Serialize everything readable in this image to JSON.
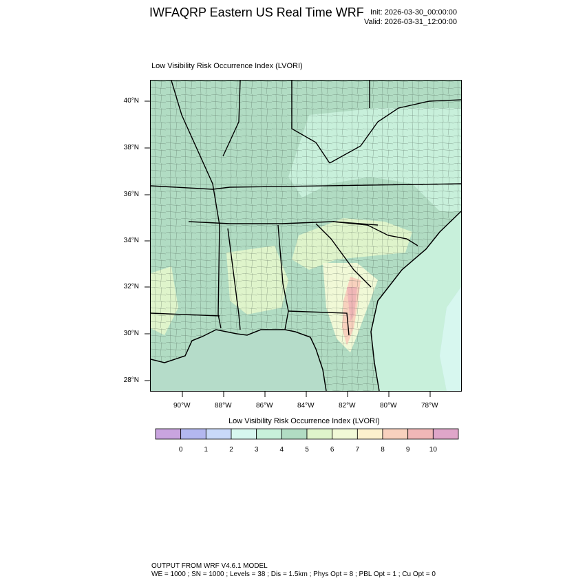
{
  "header": {
    "title": "IWFAQRP Eastern US Real Time WRF",
    "init": "Init: 2026-03-30_00:00:00",
    "valid": "Valid: 2026-03-31_12:00:00"
  },
  "map": {
    "field_title": "Low Visibility Risk Occurrence Index   (LVORI)",
    "lon_range": [
      -91.6,
      -76.5
    ],
    "lat_range": [
      27.6,
      40.95
    ],
    "lat_ticks": [
      "40°N",
      "38°N",
      "36°N",
      "34°N",
      "32°N",
      "30°N",
      "28°N"
    ],
    "lon_ticks": [
      "90°W",
      "88°W",
      "86°W",
      "84°W",
      "82°W",
      "80°W",
      "78°W"
    ],
    "colors": {
      "ocean": "#cfe0fb",
      "land_dominant": "#b1dcc3",
      "border": "#000000"
    }
  },
  "colorbar": {
    "title": "Low Visibility Risk Occurrence Index  (LVORI)",
    "colors": [
      "#c9a4df",
      "#b3b7ef",
      "#c9d9f9",
      "#d7f7ef",
      "#c8f0db",
      "#b1dcc3",
      "#dff4cb",
      "#f1f9d7",
      "#fcf0cd",
      "#f8d1be",
      "#f0b7b7",
      "#dfa6c9"
    ],
    "labels": [
      "0",
      "1",
      "2",
      "3",
      "4",
      "5",
      "6",
      "7",
      "8",
      "9",
      "10"
    ]
  },
  "footer": {
    "model": "OUTPUT FROM WRF V4.6.1 MODEL",
    "settings": "WE = 1000 ; SN = 1000 ; Levels = 38 ; Dis = 1.5km ; Phys Opt = 8 ; PBL Opt = 1 ; Cu Opt = 0"
  }
}
